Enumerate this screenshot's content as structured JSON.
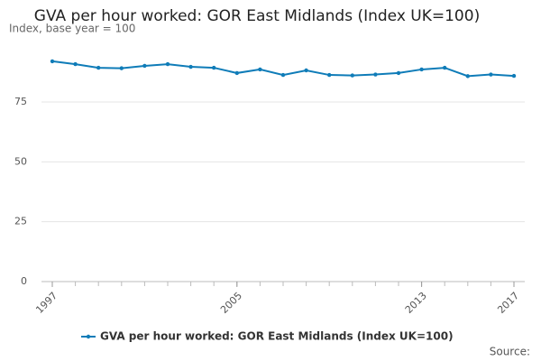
{
  "chart_data": {
    "type": "line",
    "title": "GVA per hour worked: GOR East Midlands (Index UK=100)",
    "subtitle": "Index, base year = 100",
    "source": "Source:",
    "x": [
      1997,
      1998,
      1999,
      2000,
      2001,
      2002,
      2003,
      2004,
      2005,
      2006,
      2007,
      2008,
      2009,
      2010,
      2011,
      2012,
      2013,
      2014,
      2015,
      2016,
      2017
    ],
    "series": [
      {
        "name": "GVA per hour worked: GOR East Midlands (Index UK=100)",
        "color": "#0f7cb8",
        "values": [
          92.0,
          90.8,
          89.3,
          89.1,
          90.1,
          90.8,
          89.7,
          89.3,
          87.1,
          88.6,
          86.3,
          88.2,
          86.3,
          86.1,
          86.5,
          87.1,
          88.6,
          89.3,
          85.8,
          86.5,
          85.9
        ]
      }
    ],
    "xlim": [
      1997,
      2017
    ],
    "xticks": [
      1997,
      2005,
      2013,
      2017
    ],
    "ylim": [
      0,
      100
    ],
    "yticks": [
      0,
      25,
      50,
      75
    ],
    "grid": true,
    "legend": "bottom"
  }
}
